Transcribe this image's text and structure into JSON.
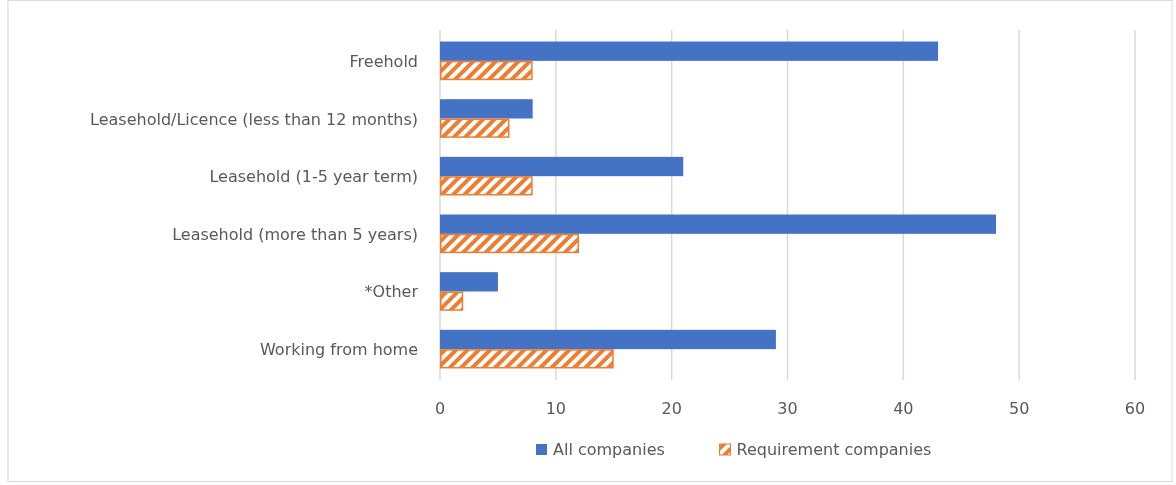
{
  "chart_data": {
    "type": "bar",
    "orientation": "horizontal",
    "categories": [
      "Freehold",
      "Leasehold/Licence (less than 12 months)",
      "Leasehold (1-5 year term)",
      "Leasehold (more than 5 years)",
      "*Other",
      "Working from home"
    ],
    "series": [
      {
        "name": "All companies",
        "color": "#4472c4",
        "values": [
          43,
          8,
          21,
          48,
          5,
          29
        ]
      },
      {
        "name": "Requirement companies",
        "color": "#ed7d31",
        "values": [
          8,
          6,
          8,
          12,
          2,
          15
        ]
      }
    ],
    "xlim": [
      0,
      60
    ],
    "xticks": [
      0,
      10,
      20,
      30,
      40,
      50,
      60
    ],
    "grid": "x",
    "legend": "bottom"
  }
}
